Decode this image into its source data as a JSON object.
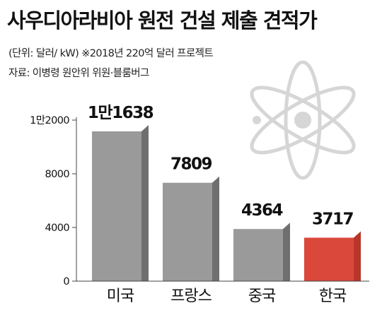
{
  "header": {
    "title": "사우디아라비아 원전 건설 제출 견적가",
    "unit_note": "(단위: 달러/ kW)  ※2018년 220억 달러 프로젝트",
    "source": "자료: 이병령 원안위 위원·블룸버그"
  },
  "colors": {
    "bar_gray": "#9a9a9a",
    "bar_gray_side": "#6f6f6f",
    "bar_highlight": "#d9483b",
    "bar_highlight_side": "#b8352a",
    "atom": "#d6d6d6"
  },
  "chart_data": {
    "type": "bar",
    "title": "사우디아라비아 원전 건설 제출 견적가",
    "ylabel": "",
    "xlabel": "",
    "categories": [
      "미국",
      "프랑스",
      "중국",
      "한국"
    ],
    "values": [
      11638,
      7809,
      4364,
      3717
    ],
    "value_labels": [
      "1만1638",
      "7809",
      "4364",
      "3717"
    ],
    "highlight": "한국",
    "ylim": [
      0,
      12000
    ],
    "yticks": [
      0,
      4000,
      8000,
      12000
    ],
    "ytick_labels": [
      "0",
      "4000",
      "8000",
      "1만2000"
    ],
    "grid": false,
    "legend": "none"
  }
}
